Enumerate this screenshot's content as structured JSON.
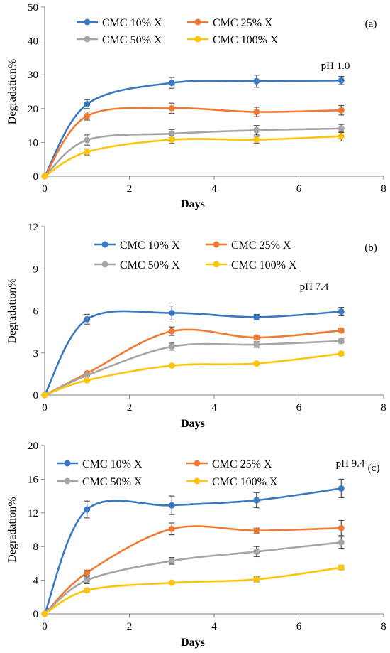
{
  "colors": {
    "CMC 10% X": "#3a78c3",
    "CMC 25% X": "#ef7a33",
    "CMC 50% X": "#a5a5a5",
    "CMC 100% X": "#fcc40a"
  },
  "chart_data": [
    {
      "type": "line",
      "panel_label": "(a)",
      "annotation": "pH 1.0",
      "xlabel": "Days",
      "ylabel": "Degradation%",
      "xlim": [
        0,
        8
      ],
      "ylim": [
        0,
        50
      ],
      "xticks": [
        0,
        2,
        4,
        6,
        8
      ],
      "yticks": [
        0,
        10,
        20,
        30,
        40,
        50
      ],
      "grid": false,
      "legend": "top, 2 columns",
      "x": [
        0,
        1,
        3,
        5,
        7
      ],
      "series": [
        {
          "name": "CMC 10% X",
          "values": [
            0,
            21.3,
            27.6,
            28.1,
            28.3
          ],
          "errors": [
            0,
            1.3,
            1.6,
            1.8,
            1.2
          ]
        },
        {
          "name": "CMC 25% X",
          "values": [
            0,
            17.8,
            20.1,
            19.0,
            19.5
          ],
          "errors": [
            0,
            1.2,
            1.5,
            1.4,
            1.4
          ]
        },
        {
          "name": "CMC 50% X",
          "values": [
            0,
            10.7,
            12.6,
            13.6,
            14.1
          ],
          "errors": [
            0,
            1.5,
            1.2,
            1.4,
            1.2
          ]
        },
        {
          "name": "CMC 100% X",
          "values": [
            0,
            7.2,
            10.8,
            10.8,
            11.8
          ],
          "errors": [
            0,
            0.9,
            1.1,
            1.0,
            1.4
          ]
        }
      ]
    },
    {
      "type": "line",
      "panel_label": "(b)",
      "annotation": "pH 7.4",
      "xlabel": "Days",
      "ylabel": "Degradation%",
      "xlim": [
        0,
        8
      ],
      "ylim": [
        0,
        12
      ],
      "xticks": [
        0,
        2,
        4,
        6,
        8
      ],
      "yticks": [
        0,
        3,
        6,
        9,
        12
      ],
      "grid": false,
      "legend": "top, 2 columns",
      "x": [
        0,
        1,
        3,
        5,
        7
      ],
      "series": [
        {
          "name": "CMC 10% X",
          "values": [
            0,
            5.4,
            5.85,
            5.55,
            5.95
          ],
          "errors": [
            0,
            0.35,
            0.5,
            0.2,
            0.3
          ]
        },
        {
          "name": "CMC 25% X",
          "values": [
            0,
            1.55,
            4.55,
            4.1,
            4.6
          ],
          "errors": [
            0,
            0.1,
            0.3,
            0.15,
            0.15
          ]
        },
        {
          "name": "CMC 50% X",
          "values": [
            0,
            1.4,
            3.45,
            3.6,
            3.85
          ],
          "errors": [
            0,
            0.1,
            0.25,
            0.2,
            0.15
          ]
        },
        {
          "name": "CMC 100% X",
          "values": [
            0,
            1.05,
            2.1,
            2.25,
            2.95
          ],
          "errors": [
            0,
            0.08,
            0.1,
            0.1,
            0.12
          ]
        }
      ]
    },
    {
      "type": "line",
      "panel_label": "(c)",
      "annotation": "pH 9.4",
      "xlabel": "Days",
      "ylabel": "Degradation%",
      "xlim": [
        0,
        8
      ],
      "ylim": [
        0,
        20
      ],
      "xticks": [
        0,
        2,
        4,
        6,
        8
      ],
      "yticks": [
        0,
        4,
        8,
        12,
        16,
        20
      ],
      "grid": false,
      "legend": "top, 2 columns",
      "x": [
        0,
        1,
        3,
        5,
        7
      ],
      "series": [
        {
          "name": "CMC 10% X",
          "values": [
            0,
            12.4,
            12.9,
            13.5,
            14.9
          ],
          "errors": [
            0,
            1.0,
            1.1,
            0.9,
            1.1
          ]
        },
        {
          "name": "CMC 25% X",
          "values": [
            0,
            4.9,
            10.1,
            9.9,
            10.2
          ],
          "errors": [
            0,
            0.3,
            0.7,
            0.3,
            0.9
          ]
        },
        {
          "name": "CMC 50% X",
          "values": [
            0,
            4.0,
            6.3,
            7.4,
            8.5
          ],
          "errors": [
            0,
            0.4,
            0.4,
            0.6,
            0.7
          ]
        },
        {
          "name": "CMC 100% X",
          "values": [
            0,
            2.8,
            3.7,
            4.1,
            5.5
          ],
          "errors": [
            0,
            0.2,
            0.15,
            0.3,
            0.25
          ]
        }
      ]
    }
  ]
}
